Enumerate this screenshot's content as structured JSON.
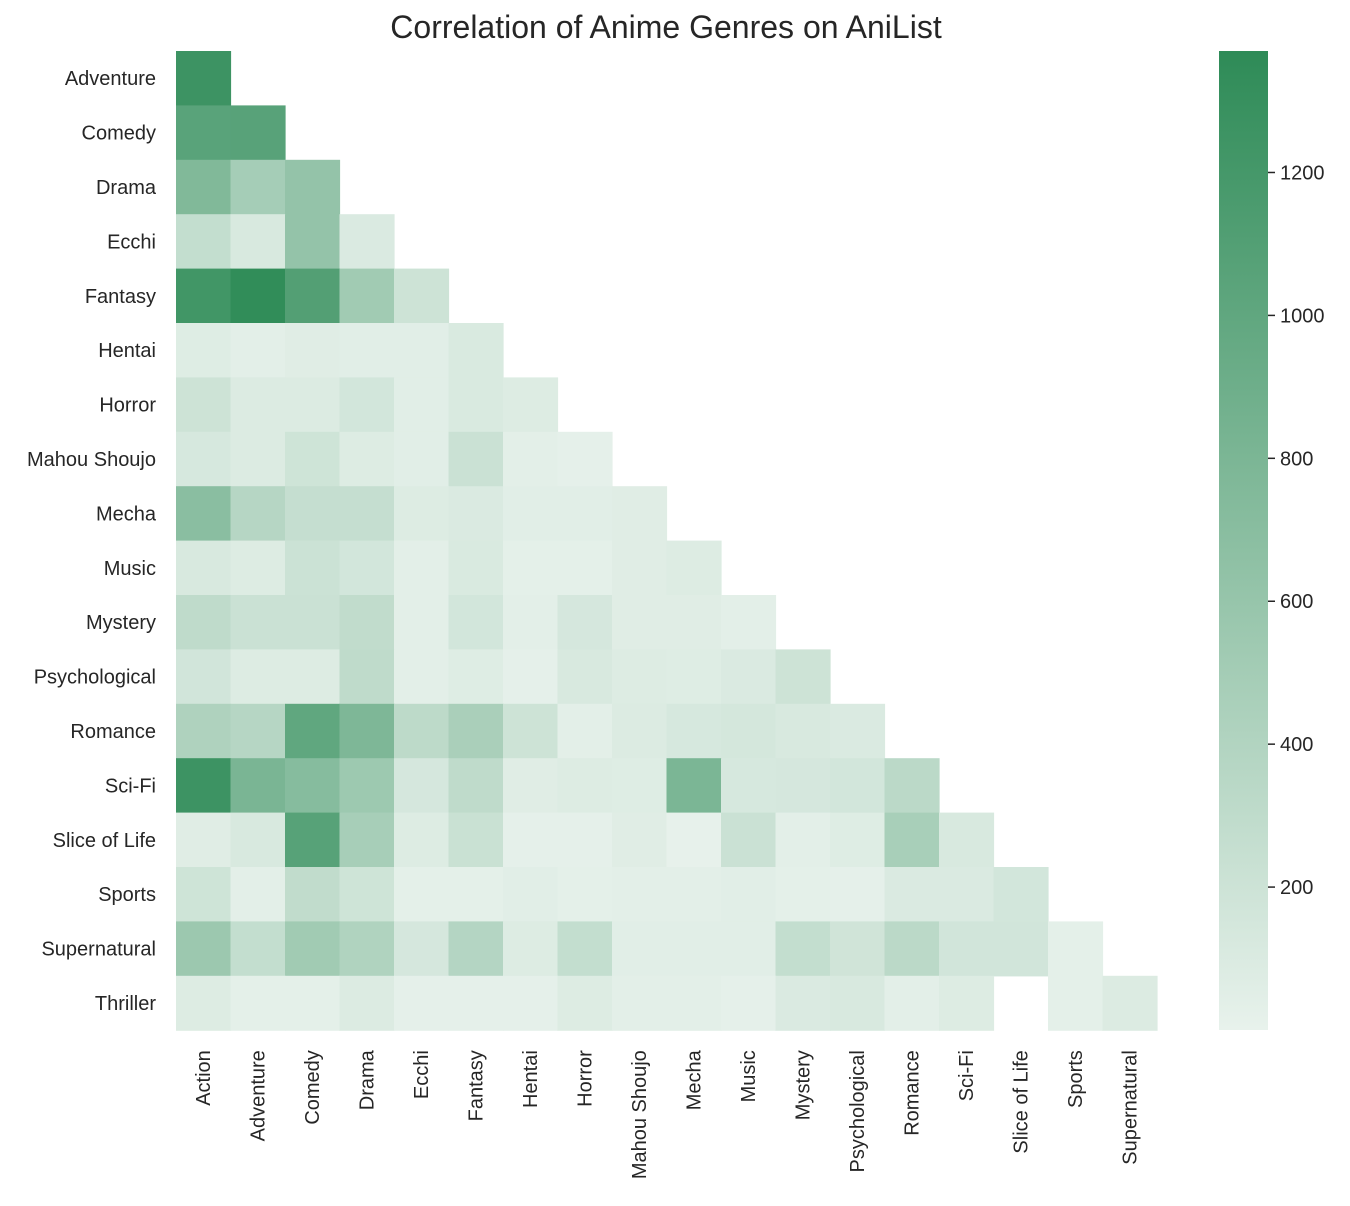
{
  "chart_data": {
    "type": "heatmap",
    "title": "Correlation of Anime Genres on AniList",
    "x_labels": [
      "Action",
      "Adventure",
      "Comedy",
      "Drama",
      "Ecchi",
      "Fantasy",
      "Hentai",
      "Horror",
      "Mahou Shoujo",
      "Mecha",
      "Music",
      "Mystery",
      "Psychological",
      "Romance",
      "Sci-Fi",
      "Slice of Life",
      "Sports",
      "Supernatural"
    ],
    "y_labels": [
      "Adventure",
      "Comedy",
      "Drama",
      "Ecchi",
      "Fantasy",
      "Hentai",
      "Horror",
      "Mahou Shoujo",
      "Mecha",
      "Music",
      "Mystery",
      "Psychological",
      "Romance",
      "Sci-Fi",
      "Slice of Life",
      "Sports",
      "Supernatural",
      "Thriller"
    ],
    "values": [
      [
        1260
      ],
      [
        1050,
        1060
      ],
      [
        760,
        490,
        620
      ],
      [
        270,
        120,
        620,
        100
      ],
      [
        1230,
        1350,
        1100,
        520,
        200
      ],
      [
        70,
        40,
        60,
        50,
        50,
        110
      ],
      [
        200,
        90,
        90,
        160,
        50,
        110,
        80
      ],
      [
        130,
        90,
        190,
        80,
        50,
        220,
        40,
        20
      ],
      [
        690,
        370,
        260,
        260,
        80,
        100,
        50,
        50,
        60
      ],
      [
        120,
        80,
        210,
        160,
        40,
        110,
        30,
        30,
        60,
        80
      ],
      [
        300,
        220,
        220,
        290,
        40,
        160,
        40,
        140,
        60,
        60,
        40
      ],
      [
        170,
        80,
        80,
        300,
        40,
        70,
        20,
        120,
        80,
        70,
        100,
        200
      ],
      [
        420,
        370,
        1000,
        780,
        320,
        460,
        200,
        40,
        90,
        130,
        150,
        120,
        100
      ],
      [
        1260,
        810,
        720,
        550,
        140,
        300,
        60,
        80,
        70,
        800,
        130,
        140,
        160,
        330
      ],
      [
        60,
        120,
        1070,
        480,
        80,
        230,
        20,
        20,
        60,
        10,
        220,
        40,
        70,
        470,
        120
      ],
      [
        190,
        40,
        290,
        190,
        30,
        30,
        50,
        30,
        40,
        40,
        50,
        30,
        20,
        100,
        100,
        160
      ],
      [
        560,
        270,
        520,
        410,
        140,
        380,
        80,
        270,
        50,
        50,
        50,
        270,
        180,
        330,
        170,
        170,
        30
      ],
      [
        80,
        30,
        30,
        90,
        20,
        20,
        20,
        80,
        40,
        40,
        20,
        100,
        120,
        40,
        80,
        null,
        30,
        90
      ]
    ],
    "colorbar": {
      "ticks": [
        200,
        400,
        600,
        800,
        1000,
        1200
      ],
      "min": 0,
      "max": 1370
    },
    "colors": {
      "low": "#e8f2ec",
      "high": "#2e8b57"
    }
  }
}
